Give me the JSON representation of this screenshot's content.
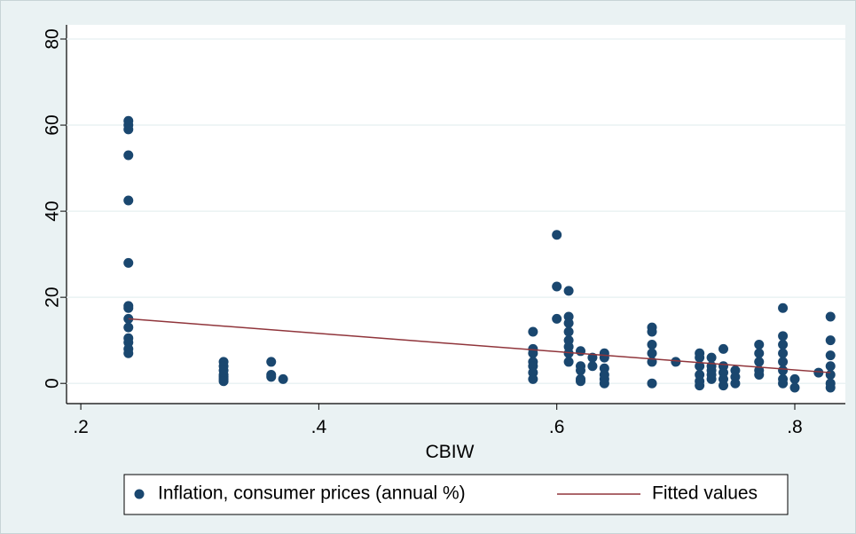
{
  "chart_data": {
    "type": "scatter",
    "xlabel": "CBIW",
    "xlim": [
      0.188,
      0.8425
    ],
    "ylim": [
      -4.7,
      83.3
    ],
    "xticks": [
      {
        "value": 0.2,
        "label": ".2"
      },
      {
        "value": 0.4,
        "label": ".4"
      },
      {
        "value": 0.6,
        "label": ".6"
      },
      {
        "value": 0.8,
        "label": ".8"
      }
    ],
    "yticks": [
      0,
      20,
      40,
      60,
      80
    ],
    "grid": true,
    "series": [
      {
        "name": "Inflation, consumer prices (annual %)",
        "type": "scatter",
        "color": "#1a476f",
        "x": [
          0.24,
          0.24,
          0.24,
          0.24,
          0.24,
          0.24,
          0.24,
          0.24,
          0.24,
          0.24,
          0.24,
          0.24,
          0.24,
          0.24,
          0.32,
          0.32,
          0.32,
          0.32,
          0.32,
          0.32,
          0.32,
          0.36,
          0.36,
          0.36,
          0.37,
          0.58,
          0.58,
          0.58,
          0.58,
          0.58,
          0.58,
          0.58,
          0.6,
          0.6,
          0.6,
          0.61,
          0.61,
          0.61,
          0.61,
          0.61,
          0.61,
          0.61,
          0.61,
          0.62,
          0.62,
          0.62,
          0.62,
          0.62,
          0.63,
          0.63,
          0.64,
          0.64,
          0.64,
          0.64,
          0.64,
          0.64,
          0.68,
          0.68,
          0.68,
          0.68,
          0.68,
          0.68,
          0.7,
          0.72,
          0.72,
          0.72,
          0.72,
          0.72,
          0.72,
          0.73,
          0.73,
          0.73,
          0.73,
          0.73,
          0.74,
          0.74,
          0.74,
          0.74,
          0.74,
          0.75,
          0.75,
          0.75,
          0.77,
          0.77,
          0.77,
          0.77,
          0.77,
          0.79,
          0.79,
          0.79,
          0.79,
          0.79,
          0.79,
          0.79,
          0.79,
          0.8,
          0.8,
          0.82,
          0.83,
          0.83,
          0.83,
          0.83,
          0.83,
          0.83,
          0.83
        ],
        "values": [
          61,
          60,
          59,
          53,
          42.5,
          28,
          18,
          17.5,
          15,
          13,
          10.5,
          9.5,
          8,
          7,
          5,
          4,
          3,
          2,
          1.5,
          1,
          0.5,
          5,
          2,
          1.5,
          1,
          12,
          8,
          7,
          5,
          4,
          2.5,
          1,
          34.5,
          22.5,
          15,
          21.5,
          15.5,
          14,
          12,
          10,
          8.5,
          7,
          5,
          7.5,
          4,
          3,
          1,
          0.5,
          6,
          4,
          7,
          6,
          3.5,
          2,
          1,
          0,
          13,
          12,
          9,
          7,
          5,
          0,
          5,
          7,
          6,
          4,
          2,
          0.5,
          -0.5,
          6,
          4,
          3,
          2,
          1,
          8,
          4,
          2.5,
          1,
          -0.5,
          3,
          1.5,
          0,
          9,
          7,
          5,
          3,
          2,
          17.5,
          11,
          9,
          7,
          5,
          3,
          1,
          0,
          1,
          -1,
          2.5,
          15.5,
          10,
          6.5,
          4,
          2,
          0,
          -1
        ]
      },
      {
        "name": "Fitted values",
        "type": "line",
        "color": "#90353b",
        "x": [
          0.24,
          0.83
        ],
        "values": [
          15,
          2.5
        ]
      }
    ]
  }
}
